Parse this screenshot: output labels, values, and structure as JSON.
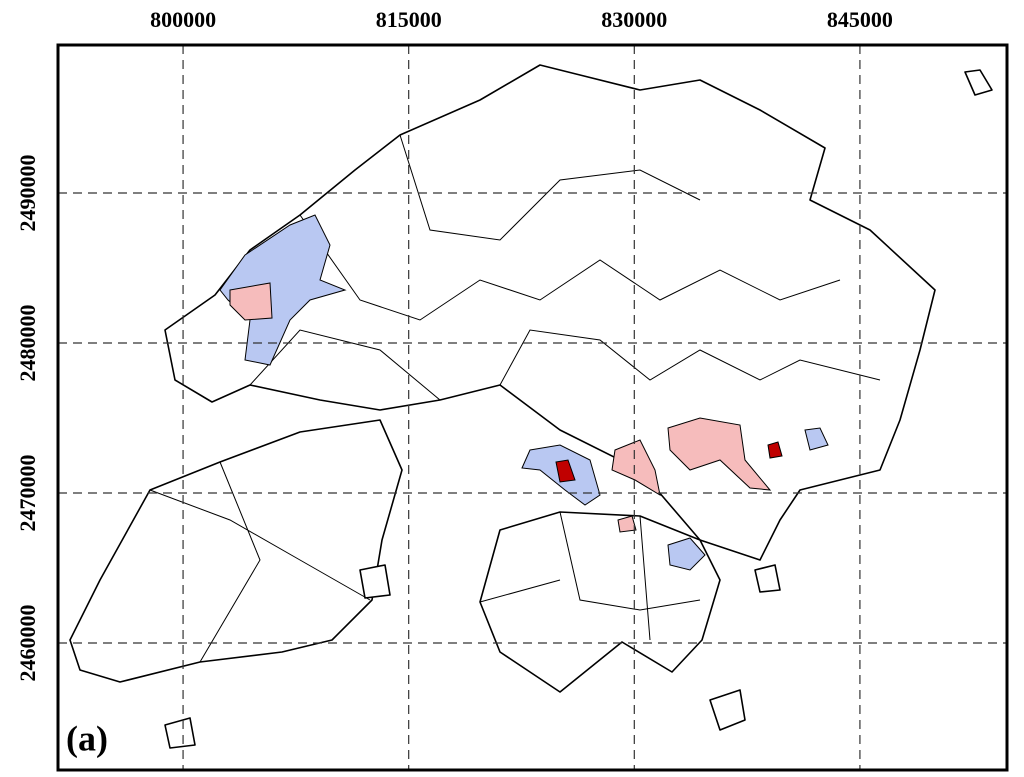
{
  "map": {
    "panel_label": "(a)",
    "xlim": [
      791685,
      854778
    ],
    "ylim": [
      2451533,
      2499867
    ],
    "xticks": [
      800000,
      815000,
      830000,
      845000
    ],
    "yticks": [
      2460000,
      2470000,
      2480000,
      2490000
    ],
    "grid": true
  }
}
